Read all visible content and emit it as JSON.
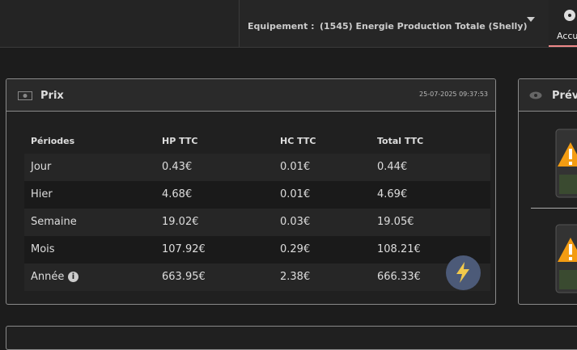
{
  "topbar": {
    "equipment_label": "Equipement :",
    "equipment_value": "(1545) Energie Production Totale (Shelly)",
    "tab": "Accu"
  },
  "price_panel": {
    "title": "Prix",
    "timestamp": "25-07-2025 09:37:53",
    "table": {
      "header": [
        "Périodes",
        "HP TTC",
        "HC TTC",
        "Total TTC"
      ],
      "rows": [
        [
          "Jour",
          "0.43€",
          "0.01€",
          "0.44€"
        ],
        [
          "Hier",
          "4.68€",
          "0.01€",
          "4.69€"
        ],
        [
          "Semaine",
          "19.02€",
          "0.03€",
          "19.05€"
        ],
        [
          "Mois",
          "107.92€",
          "0.29€",
          "108.21€"
        ],
        [
          "Année",
          "663.95€",
          "2.38€",
          "666.33€"
        ]
      ]
    }
  },
  "forecast_panel": {
    "title": "Prévi"
  }
}
